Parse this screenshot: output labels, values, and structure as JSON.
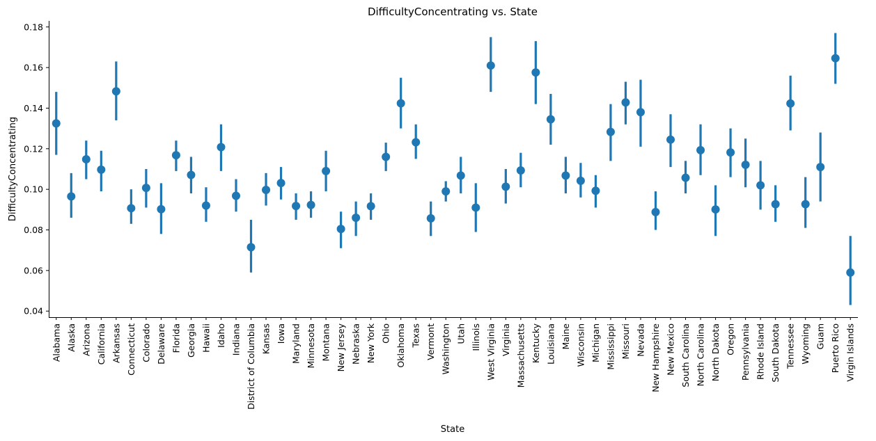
{
  "chart_data": {
    "type": "pointplot",
    "title": "DifficultyConcentrating vs. State",
    "xlabel": "State",
    "ylabel": "DifficultyConcentrating",
    "ylim": [
      0.037,
      0.183
    ],
    "yticks": [
      0.04,
      0.06,
      0.08,
      0.1,
      0.12,
      0.14,
      0.16,
      0.18
    ],
    "ytick_labels": [
      "0.04",
      "0.06",
      "0.08",
      "0.10",
      "0.12",
      "0.14",
      "0.16",
      "0.18"
    ],
    "grid": false,
    "color": "#1f77b4",
    "categories": [
      "Alabama",
      "Alaska",
      "Arizona",
      "California",
      "Arkansas",
      "Connecticut",
      "Colorado",
      "Delaware",
      "Florida",
      "Georgia",
      "Hawaii",
      "Idaho",
      "Indiana",
      "District of Columbia",
      "Kansas",
      "Iowa",
      "Maryland",
      "Minnesota",
      "Montana",
      "New Jersey",
      "Nebraska",
      "New York",
      "Ohio",
      "Oklahoma",
      "Texas",
      "Vermont",
      "Washington",
      "Utah",
      "Illinois",
      "West Virginia",
      "Virginia",
      "Massachusetts",
      "Kentucky",
      "Louisiana",
      "Maine",
      "Wisconsin",
      "Michigan",
      "Mississippi",
      "Missouri",
      "Nevada",
      "New Hampshire",
      "New Mexico",
      "South Carolina",
      "North Carolina",
      "North Dakota",
      "Oregon",
      "Pennsylvania",
      "Rhode Island",
      "South Dakota",
      "Tennessee",
      "Wyoming",
      "Guam",
      "Puerto Rico",
      "Virgin Islands"
    ],
    "values": [
      0.1325,
      0.0965,
      0.1148,
      0.1097,
      0.1483,
      0.0907,
      0.1007,
      0.0902,
      0.1168,
      0.1071,
      0.092,
      0.1208,
      0.0968,
      0.0715,
      0.0997,
      0.1031,
      0.0918,
      0.0923,
      0.109,
      0.0805,
      0.086,
      0.0917,
      0.116,
      0.1424,
      0.1232,
      0.0857,
      0.099,
      0.1068,
      0.091,
      0.161,
      0.1013,
      0.1093,
      0.1576,
      0.1345,
      0.1068,
      0.1042,
      0.0993,
      0.1283,
      0.1428,
      0.138,
      0.0888,
      0.1245,
      0.1057,
      0.1193,
      0.0901,
      0.1182,
      0.1121,
      0.102,
      0.0927,
      0.1423,
      0.0927,
      0.111,
      0.1646,
      0.059
    ],
    "ci_low": [
      0.117,
      0.086,
      0.105,
      0.099,
      0.134,
      0.083,
      0.091,
      0.078,
      0.109,
      0.098,
      0.084,
      0.109,
      0.089,
      0.059,
      0.092,
      0.095,
      0.085,
      0.086,
      0.099,
      0.071,
      0.077,
      0.085,
      0.109,
      0.13,
      0.115,
      0.077,
      0.094,
      0.098,
      0.079,
      0.148,
      0.093,
      0.101,
      0.142,
      0.122,
      0.098,
      0.096,
      0.091,
      0.114,
      0.132,
      0.121,
      0.08,
      0.111,
      0.098,
      0.107,
      0.077,
      0.106,
      0.101,
      0.09,
      0.084,
      0.129,
      0.081,
      0.094,
      0.152,
      0.043
    ],
    "ci_high": [
      0.148,
      0.108,
      0.124,
      0.119,
      0.163,
      0.1,
      0.11,
      0.103,
      0.124,
      0.116,
      0.101,
      0.132,
      0.105,
      0.085,
      0.108,
      0.111,
      0.098,
      0.099,
      0.119,
      0.089,
      0.094,
      0.098,
      0.123,
      0.155,
      0.132,
      0.094,
      0.104,
      0.116,
      0.103,
      0.175,
      0.11,
      0.118,
      0.173,
      0.147,
      0.116,
      0.113,
      0.107,
      0.142,
      0.153,
      0.154,
      0.099,
      0.137,
      0.114,
      0.132,
      0.102,
      0.13,
      0.125,
      0.114,
      0.102,
      0.156,
      0.106,
      0.128,
      0.177,
      0.077
    ]
  }
}
